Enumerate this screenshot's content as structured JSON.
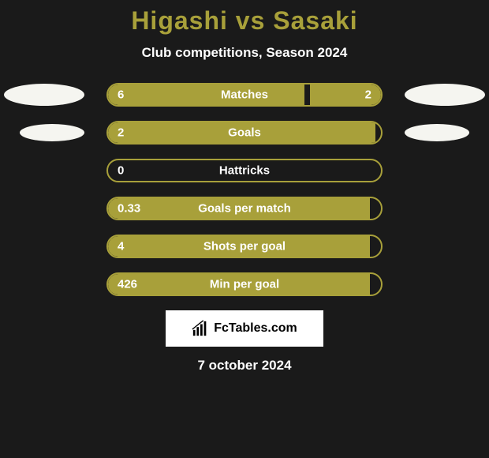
{
  "title": "Higashi vs Sasaki",
  "subtitle": "Club competitions, Season 2024",
  "date": "7 october 2024",
  "branding_text": "FcTables.com",
  "colors": {
    "background": "#1a1a1a",
    "accent": "#a8a03a",
    "text_light": "#ffffff",
    "ellipse_fill": "#f5f5f0",
    "branding_bg": "#ffffff",
    "branding_text": "#000000"
  },
  "stats": [
    {
      "label": "Matches",
      "left_value": "6",
      "right_value": "2",
      "left_num": 6,
      "right_num": 2,
      "left_pct": 72,
      "right_pct": 26,
      "show_ellipses": true,
      "ellipse_size": "large"
    },
    {
      "label": "Goals",
      "left_value": "2",
      "right_value": "",
      "left_num": 2,
      "right_num": 0,
      "left_pct": 98,
      "right_pct": 0,
      "show_ellipses": true,
      "ellipse_size": "small"
    },
    {
      "label": "Hattricks",
      "left_value": "0",
      "right_value": "",
      "left_num": 0,
      "right_num": 0,
      "left_pct": 0,
      "right_pct": 0,
      "show_ellipses": false
    },
    {
      "label": "Goals per match",
      "left_value": "0.33",
      "right_value": "",
      "left_num": 0.33,
      "right_num": 0,
      "left_pct": 96,
      "right_pct": 0,
      "show_ellipses": false
    },
    {
      "label": "Shots per goal",
      "left_value": "4",
      "right_value": "",
      "left_num": 4,
      "right_num": 0,
      "left_pct": 96,
      "right_pct": 0,
      "show_ellipses": false
    },
    {
      "label": "Min per goal",
      "left_value": "426",
      "right_value": "",
      "left_num": 426,
      "right_num": 0,
      "left_pct": 96,
      "right_pct": 0,
      "show_ellipses": false
    }
  ]
}
